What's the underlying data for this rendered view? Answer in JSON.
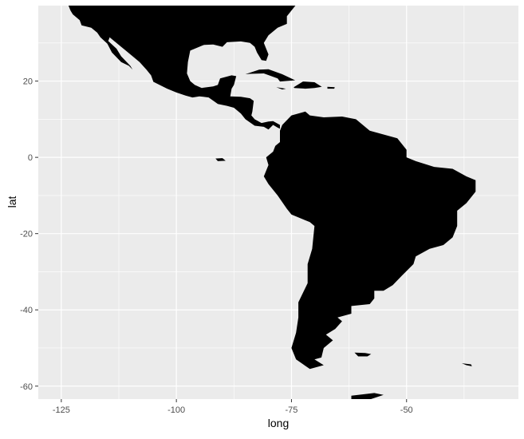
{
  "chart_data": {
    "type": "map",
    "xlabel": "long",
    "ylabel": "lat",
    "xlim": [
      -130,
      -25.7
    ],
    "ylim": [
      -63.4,
      39.8
    ],
    "x_ticks": [
      -125,
      -100,
      -75,
      -50
    ],
    "y_ticks": [
      20,
      0,
      -20,
      -40,
      -60
    ],
    "x_tick_labels": [
      "-125",
      "-100",
      "-75",
      "-50"
    ],
    "y_tick_labels": [
      "20",
      "0",
      "-20",
      "-40",
      "-60"
    ],
    "grid": true,
    "colors": {
      "panel": "#EBEBEB",
      "grid": "#FFFFFF",
      "fill": "#000000",
      "tick_text": "#4D4D4D",
      "axis_title": "#000000"
    },
    "polygons": [
      {
        "region": "North and Central America",
        "coords": [
          [
            -123.5,
            40
          ],
          [
            -74,
            40
          ],
          [
            -74,
            40
          ],
          [
            -75,
            38.5
          ],
          [
            -76,
            37
          ],
          [
            -76,
            35
          ],
          [
            -78,
            34
          ],
          [
            -80,
            32
          ],
          [
            -81,
            30
          ],
          [
            -80,
            27
          ],
          [
            -80.5,
            25.3
          ],
          [
            -81.5,
            25.5
          ],
          [
            -82.5,
            27.5
          ],
          [
            -83,
            29
          ],
          [
            -84,
            30
          ],
          [
            -86,
            30.4
          ],
          [
            -89,
            30.2
          ],
          [
            -90,
            29
          ],
          [
            -92,
            29.6
          ],
          [
            -94,
            29.5
          ],
          [
            -97,
            28
          ],
          [
            -97.5,
            25
          ],
          [
            -97.7,
            22
          ],
          [
            -97,
            20
          ],
          [
            -96,
            19
          ],
          [
            -94.5,
            18.2
          ],
          [
            -92,
            18.6
          ],
          [
            -91,
            19
          ],
          [
            -90.5,
            20.7
          ],
          [
            -88,
            21.5
          ],
          [
            -87,
            21.3
          ],
          [
            -87.5,
            19
          ],
          [
            -88,
            18
          ],
          [
            -88.3,
            16
          ],
          [
            -86,
            15.9
          ],
          [
            -84,
            15.5
          ],
          [
            -83.2,
            14.8
          ],
          [
            -83.5,
            12
          ],
          [
            -83.7,
            11
          ],
          [
            -83,
            10
          ],
          [
            -81.5,
            9
          ],
          [
            -80,
            9.4
          ],
          [
            -79,
            9.5
          ],
          [
            -77.5,
            8.5
          ],
          [
            -77.5,
            7.5
          ],
          [
            -78,
            7.8
          ],
          [
            -79,
            8.5
          ],
          [
            -80,
            7.3
          ],
          [
            -81,
            8
          ],
          [
            -83,
            8.3
          ],
          [
            -85,
            10
          ],
          [
            -86,
            11.5
          ],
          [
            -87.5,
            13
          ],
          [
            -89,
            13.5
          ],
          [
            -91,
            14
          ],
          [
            -93,
            15.7
          ],
          [
            -95,
            16
          ],
          [
            -96.5,
            15.7
          ],
          [
            -98,
            16.2
          ],
          [
            -100,
            17
          ],
          [
            -102,
            18
          ],
          [
            -105,
            19.8
          ],
          [
            -105.5,
            21.5
          ],
          [
            -106.5,
            23
          ],
          [
            -108,
            25
          ],
          [
            -109.5,
            26.5
          ],
          [
            -111,
            28
          ],
          [
            -112.5,
            29.5
          ],
          [
            -114.5,
            31.5
          ],
          [
            -114.8,
            30.5
          ],
          [
            -113,
            28.5
          ],
          [
            -112,
            26.5
          ],
          [
            -110,
            24
          ],
          [
            -109.5,
            23
          ],
          [
            -110.3,
            24
          ],
          [
            -112,
            25
          ],
          [
            -114,
            27.5
          ],
          [
            -115,
            29.8
          ],
          [
            -116.5,
            31.5
          ],
          [
            -117.2,
            32.7
          ],
          [
            -118.5,
            34
          ],
          [
            -120.6,
            34.6
          ],
          [
            -121,
            36
          ],
          [
            -122.5,
            37.5
          ],
          [
            -123,
            38.5
          ]
        ]
      },
      {
        "region": "South America",
        "coords": [
          [
            -77,
            8.5
          ],
          [
            -75,
            11
          ],
          [
            -72,
            12
          ],
          [
            -71,
            11
          ],
          [
            -68,
            10.5
          ],
          [
            -64,
            10.7
          ],
          [
            -61,
            10
          ],
          [
            -58,
            7
          ],
          [
            -55,
            6
          ],
          [
            -52,
            5
          ],
          [
            -50,
            2
          ],
          [
            -50,
            0
          ],
          [
            -48,
            -1
          ],
          [
            -44,
            -2.5
          ],
          [
            -40,
            -3
          ],
          [
            -37,
            -5
          ],
          [
            -35,
            -6
          ],
          [
            -35,
            -9
          ],
          [
            -37,
            -12
          ],
          [
            -39,
            -14
          ],
          [
            -39,
            -18
          ],
          [
            -40,
            -21
          ],
          [
            -42,
            -23
          ],
          [
            -45,
            -24
          ],
          [
            -48,
            -26
          ],
          [
            -48.5,
            -28
          ],
          [
            -51,
            -31
          ],
          [
            -53,
            -33.5
          ],
          [
            -55,
            -35
          ],
          [
            -57,
            -35
          ],
          [
            -57,
            -37
          ],
          [
            -58,
            -38.5
          ],
          [
            -62,
            -39
          ],
          [
            -62,
            -41
          ],
          [
            -65,
            -42
          ],
          [
            -64,
            -43
          ],
          [
            -65.5,
            -45
          ],
          [
            -67.5,
            -46.5
          ],
          [
            -66,
            -48
          ],
          [
            -68,
            -50
          ],
          [
            -68.5,
            -52.5
          ],
          [
            -70,
            -53
          ],
          [
            -68,
            -54.5
          ],
          [
            -71,
            -55.5
          ],
          [
            -74,
            -53
          ],
          [
            -75,
            -50
          ],
          [
            -74,
            -46
          ],
          [
            -73.5,
            -42
          ],
          [
            -73.5,
            -38
          ],
          [
            -71.5,
            -33
          ],
          [
            -71.5,
            -28
          ],
          [
            -70.5,
            -24
          ],
          [
            -70,
            -18
          ],
          [
            -71,
            -17
          ],
          [
            -75,
            -15
          ],
          [
            -76,
            -13.5
          ],
          [
            -78,
            -10
          ],
          [
            -80,
            -7
          ],
          [
            -81,
            -5
          ],
          [
            -80,
            -2
          ],
          [
            -80.5,
            0
          ],
          [
            -79,
            1.5
          ],
          [
            -78.5,
            3
          ],
          [
            -77.5,
            4
          ],
          [
            -77.5,
            7
          ]
        ]
      },
      {
        "region": "Cuba",
        "coords": [
          [
            -85,
            21.8
          ],
          [
            -82,
            23
          ],
          [
            -80,
            23.1
          ],
          [
            -77,
            21.8
          ],
          [
            -74.2,
            20.2
          ],
          [
            -77.5,
            19.9
          ],
          [
            -78,
            20.7
          ],
          [
            -81,
            22
          ],
          [
            -84,
            21.9
          ]
        ]
      },
      {
        "region": "Hispaniola",
        "coords": [
          [
            -74.5,
            18.4
          ],
          [
            -72.5,
            19.9
          ],
          [
            -70,
            19.7
          ],
          [
            -68.4,
            18.5
          ],
          [
            -70,
            18.2
          ],
          [
            -72,
            18
          ],
          [
            -74.4,
            18.2
          ]
        ]
      },
      {
        "region": "Jamaica",
        "coords": [
          [
            -78.3,
            18.4
          ],
          [
            -76.2,
            18
          ],
          [
            -77,
            17.8
          ]
        ]
      },
      {
        "region": "Puerto Rico",
        "coords": [
          [
            -67.2,
            18.5
          ],
          [
            -65.6,
            18.4
          ],
          [
            -65.7,
            18
          ],
          [
            -67.2,
            18
          ]
        ]
      },
      {
        "region": "Falkland Islands",
        "coords": [
          [
            -61.3,
            -51.2
          ],
          [
            -59,
            -51.3
          ],
          [
            -57.7,
            -51.6
          ],
          [
            -58.5,
            -52.2
          ],
          [
            -60.5,
            -52.2
          ]
        ]
      },
      {
        "region": "South Georgia",
        "coords": [
          [
            -38,
            -54
          ],
          [
            -36,
            -54.3
          ],
          [
            -35.8,
            -54.8
          ],
          [
            -37,
            -54.5
          ]
        ]
      },
      {
        "region": "Galapagos",
        "coords": [
          [
            -91.5,
            -0.3
          ],
          [
            -90,
            -0.2
          ],
          [
            -89.3,
            -0.9
          ],
          [
            -91,
            -1
          ]
        ]
      },
      {
        "region": "Antarctic Peninsula",
        "coords": [
          [
            -62,
            -62.5
          ],
          [
            -57,
            -61.8
          ],
          [
            -55,
            -62.3
          ],
          [
            -58,
            -63.5
          ],
          [
            -62,
            -64
          ]
        ]
      }
    ]
  }
}
